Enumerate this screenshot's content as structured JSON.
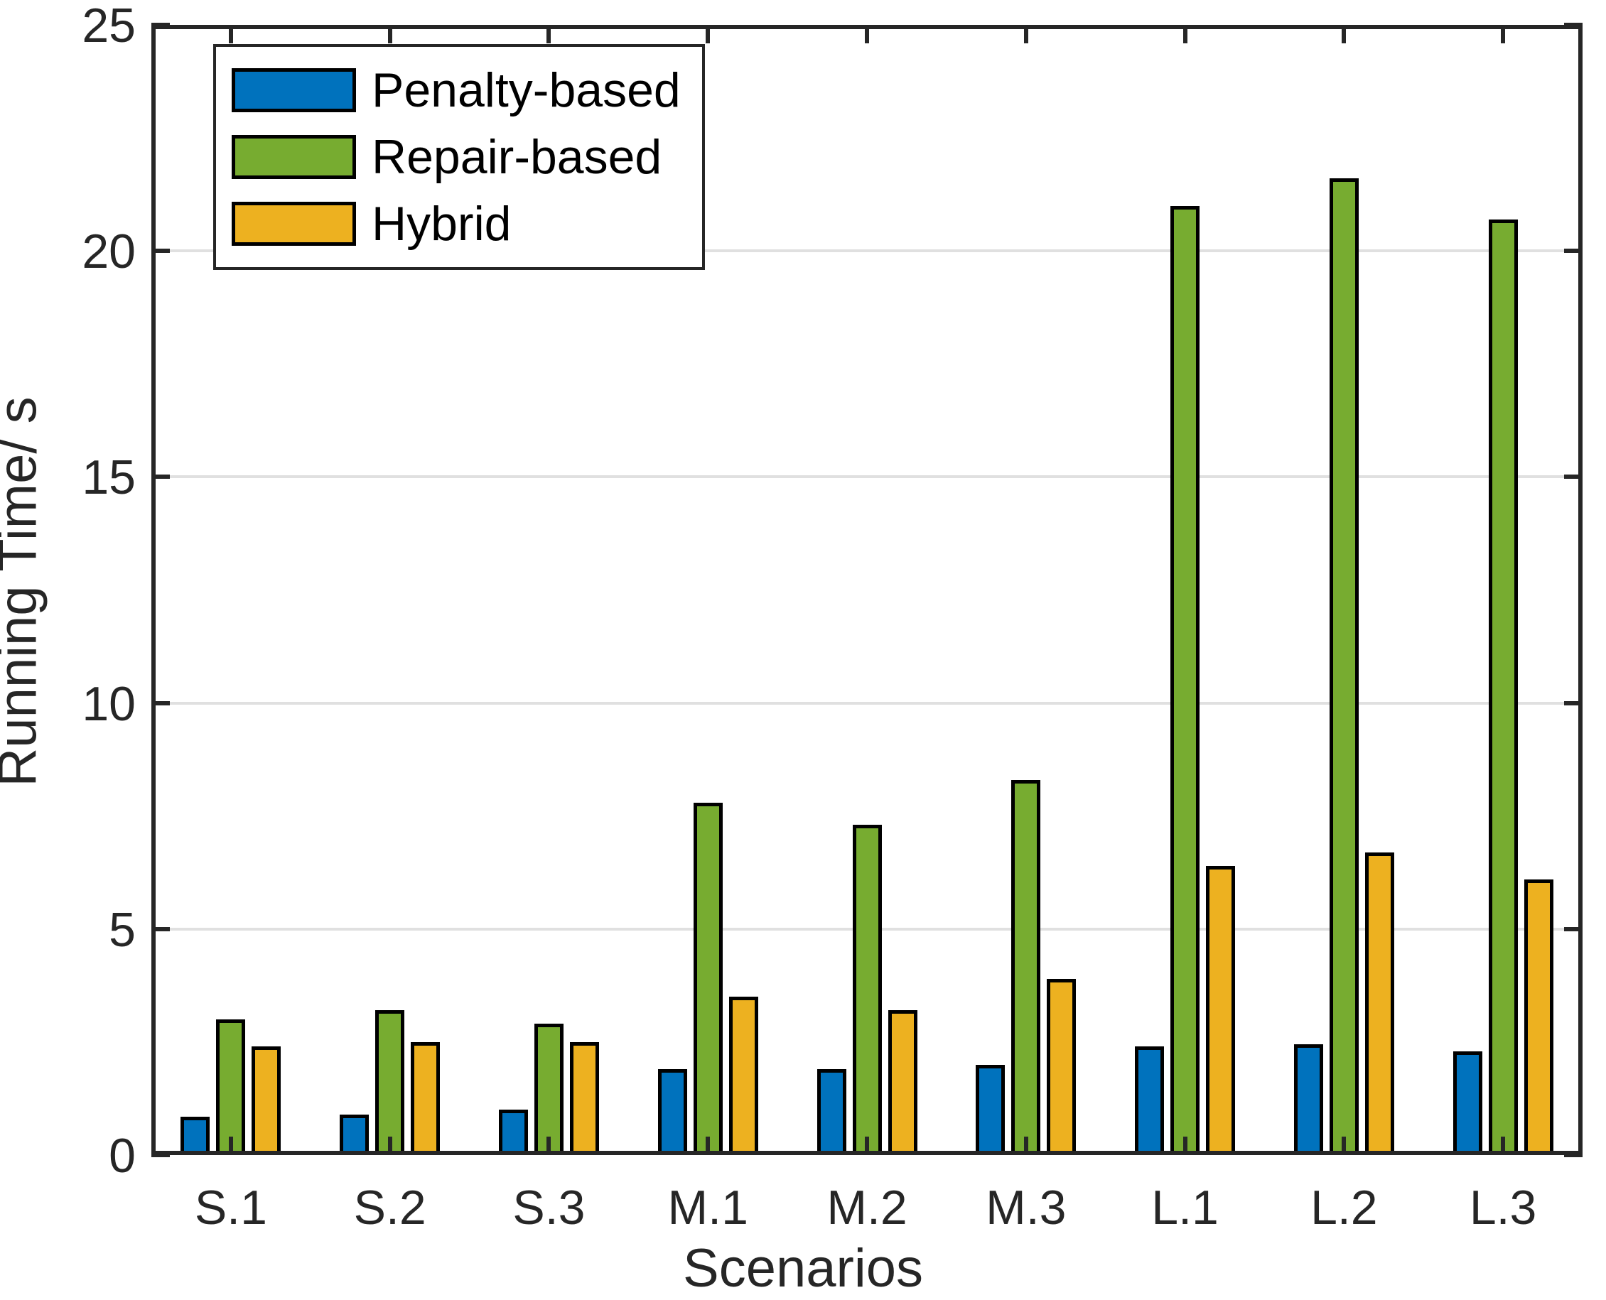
{
  "chart_data": {
    "type": "bar",
    "title": "",
    "xlabel": "Scenarios",
    "ylabel": "Running Time/ s",
    "categories": [
      "S.1",
      "S.2",
      "S.3",
      "M.1",
      "M.2",
      "M.3",
      "L.1",
      "L.2",
      "L.3"
    ],
    "series": [
      {
        "name": "Penalty-based",
        "color": "#0072BD",
        "values": [
          0.85,
          0.9,
          1.0,
          1.9,
          1.9,
          2.0,
          2.4,
          2.45,
          2.3
        ]
      },
      {
        "name": "Repair-based",
        "color": "#77AC30",
        "values": [
          3.0,
          3.2,
          2.9,
          7.8,
          7.3,
          8.3,
          21.0,
          21.6,
          20.7
        ]
      },
      {
        "name": "Hybrid",
        "color": "#EDB120",
        "values": [
          2.4,
          2.5,
          2.5,
          3.5,
          3.2,
          3.9,
          6.4,
          6.7,
          6.1
        ]
      }
    ],
    "ylim": [
      0,
      25
    ],
    "yticks": [
      0,
      5,
      10,
      15,
      20,
      25
    ],
    "grid": "horizontal-only",
    "legend_position": "top-left-inside"
  },
  "style": {
    "axis_color": "#262626",
    "grid_color": "#E0E0E0",
    "bar_edge_color": "#000000",
    "background": "#FFFFFF"
  }
}
